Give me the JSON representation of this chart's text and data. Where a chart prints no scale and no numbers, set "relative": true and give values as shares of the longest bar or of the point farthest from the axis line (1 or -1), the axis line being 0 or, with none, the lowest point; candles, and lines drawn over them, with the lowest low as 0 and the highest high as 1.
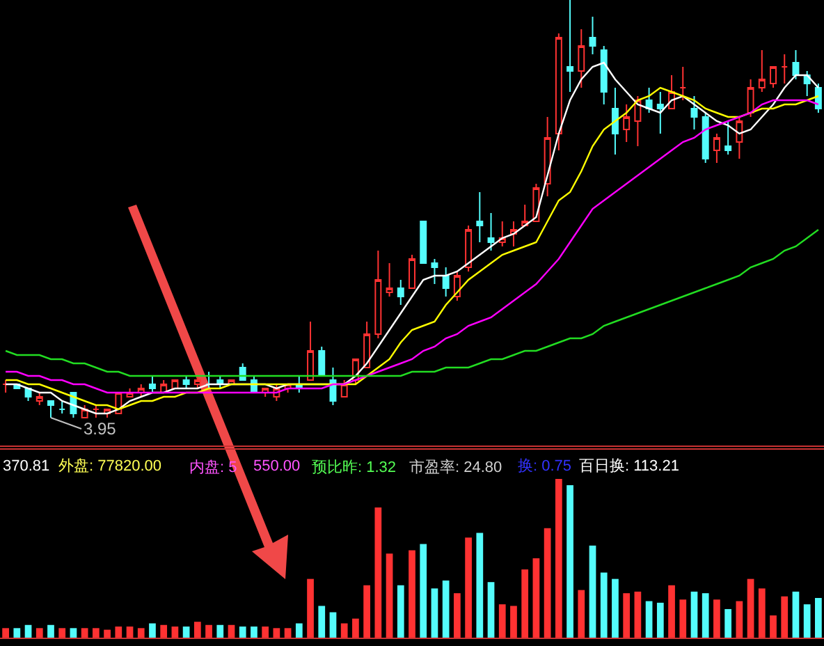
{
  "chart_data": [
    {
      "type": "candlestick",
      "relative": true,
      "categories": [
        null,
        null,
        null,
        null,
        null,
        null,
        null,
        null,
        null,
        null,
        null,
        null,
        null,
        null,
        null,
        null,
        null,
        null,
        null,
        null,
        null,
        null,
        null,
        null,
        null,
        null,
        null,
        null,
        null,
        null,
        null,
        null,
        null,
        null,
        null,
        null,
        null,
        null,
        null,
        null,
        null,
        null,
        null,
        null,
        null,
        null,
        null,
        null,
        null,
        null,
        null,
        null,
        null,
        null,
        null,
        null,
        null,
        null,
        null,
        null,
        null,
        null,
        null,
        null,
        null,
        null,
        null,
        null,
        null,
        null,
        null,
        null,
        null
      ],
      "ohlc": [
        [
          0.08,
          0.09,
          0.06,
          0.08
        ],
        [
          0.08,
          0.08,
          0.07,
          0.07
        ],
        [
          0.07,
          0.07,
          0.04,
          0.05
        ],
        [
          0.04,
          0.06,
          0.03,
          0.05
        ],
        [
          0.04,
          0.04,
          0,
          0.03
        ],
        [
          0.02,
          0.04,
          0.01,
          0.02
        ],
        [
          0.06,
          0.06,
          0,
          0.01
        ],
        [
          0,
          0.03,
          0,
          0.02
        ],
        [
          0.02,
          0.03,
          0,
          0.02
        ],
        [
          0.01,
          0.02,
          0,
          0.02
        ],
        [
          0.01,
          0.06,
          0.01,
          0.06
        ],
        [
          0.05,
          0.07,
          0.05,
          0.06
        ],
        [
          0.06,
          0.08,
          0.05,
          0.07
        ],
        [
          0.08,
          0.1,
          0.06,
          0.07
        ],
        [
          0.06,
          0.09,
          0.06,
          0.08
        ],
        [
          0.07,
          0.09,
          0.07,
          0.09
        ],
        [
          0.09,
          0.1,
          0.07,
          0.08
        ],
        [
          0.08,
          0.1,
          0.07,
          0.09
        ],
        [
          0.08,
          0.11,
          0.07,
          0.08
        ],
        [
          0.09,
          0.1,
          0.07,
          0.08
        ],
        [
          0.08,
          0.09,
          0.08,
          0.09
        ],
        [
          0.12,
          0.13,
          0.09,
          0.09
        ],
        [
          0.09,
          0.1,
          0.06,
          0.06
        ],
        [
          0.06,
          0.07,
          0.05,
          0.07
        ],
        [
          0.05,
          0.08,
          0.04,
          0.07
        ],
        [
          0.07,
          0.08,
          0.06,
          0.08
        ],
        [
          0.08,
          0.1,
          0.06,
          0.07
        ],
        [
          0.09,
          0.23,
          0.09,
          0.16
        ],
        [
          0.16,
          0.17,
          0.1,
          0.1
        ],
        [
          0.09,
          0.12,
          0.03,
          0.04
        ],
        [
          0.05,
          0.09,
          0.05,
          0.08
        ],
        [
          0.09,
          0.14,
          0.08,
          0.14
        ],
        [
          0.12,
          0.23,
          0.12,
          0.2
        ],
        [
          0.2,
          0.4,
          0.19,
          0.33
        ],
        [
          0.3,
          0.37,
          0.29,
          0.31
        ],
        [
          0.31,
          0.33,
          0.27,
          0.29
        ],
        [
          0.31,
          0.39,
          0.31,
          0.38
        ],
        [
          0.47,
          0.47,
          0.37,
          0.37
        ],
        [
          0.37,
          0.38,
          0.32,
          0.36
        ],
        [
          0.34,
          0.36,
          0.29,
          0.31
        ],
        [
          0.29,
          0.35,
          0.28,
          0.34
        ],
        [
          0.36,
          0.46,
          0.35,
          0.45
        ],
        [
          0.47,
          0.54,
          0.42,
          0.46
        ],
        [
          0.43,
          0.49,
          0.4,
          0.42
        ],
        [
          0.42,
          0.47,
          0.41,
          0.43
        ],
        [
          0.44,
          0.47,
          0.41,
          0.45
        ],
        [
          0.46,
          0.51,
          0.46,
          0.47
        ],
        [
          0.47,
          0.56,
          0.47,
          0.55
        ],
        [
          0.56,
          0.72,
          0.53,
          0.67
        ],
        [
          0.68,
          0.92,
          0.64,
          0.91
        ],
        [
          0.84,
          1,
          0.78,
          0.83
        ],
        [
          0.83,
          0.93,
          0.79,
          0.89
        ],
        [
          0.91,
          0.96,
          0.87,
          0.89
        ],
        [
          0.88,
          0.89,
          0.75,
          0.78
        ],
        [
          0.74,
          0.79,
          0.63,
          0.68
        ],
        [
          0.69,
          0.75,
          0.66,
          0.72
        ],
        [
          0.71,
          0.77,
          0.65,
          0.76
        ],
        [
          0.76,
          0.79,
          0.73,
          0.74
        ],
        [
          0.75,
          0.78,
          0.68,
          0.74
        ],
        [
          0.74,
          0.82,
          0.74,
          0.78
        ],
        [
          0.79,
          0.84,
          0.76,
          0.79
        ],
        [
          0.74,
          0.77,
          0.69,
          0.72
        ],
        [
          0.72,
          0.73,
          0.61,
          0.62
        ],
        [
          0.64,
          0.68,
          0.61,
          0.67
        ],
        [
          0.65,
          0.71,
          0.63,
          0.64
        ],
        [
          0.66,
          0.72,
          0.62,
          0.71
        ],
        [
          0.73,
          0.81,
          0.72,
          0.79
        ],
        [
          0.79,
          0.88,
          0.78,
          0.81
        ],
        [
          0.8,
          0.84,
          0.79,
          0.84
        ],
        [
          0.84,
          0.87,
          0.8,
          0.84
        ],
        [
          0.85,
          0.88,
          0.81,
          0.82
        ],
        [
          0.82,
          0.83,
          0.77,
          0.8
        ],
        [
          0.79,
          0.8,
          0.73,
          0.74
        ]
      ],
      "series": [
        {
          "type": "line",
          "color": "#ffffff",
          "values": [
            0.08,
            0.08,
            0.07,
            0.06,
            0.06,
            0.04,
            0.03,
            0.02,
            0.01,
            0.01,
            0.02,
            0.04,
            0.05,
            0.06,
            0.06,
            0.07,
            0.07,
            0.07,
            0.08,
            0.08,
            0.08,
            0.08,
            0.08,
            0.08,
            0.07,
            0.08,
            0.08,
            0.08,
            0.08,
            0.08,
            0.08,
            0.1,
            0.13,
            0.17,
            0.21,
            0.25,
            0.29,
            0.33,
            0.34,
            0.34,
            0.35,
            0.37,
            0.39,
            0.41,
            0.43,
            0.44,
            0.46,
            0.48,
            0.58,
            0.68,
            0.76,
            0.81,
            0.84,
            0.85,
            0.81,
            0.78,
            0.75,
            0.74,
            0.73,
            0.76,
            0.77,
            0.75,
            0.73,
            0.71,
            0.7,
            0.68,
            0.69,
            0.72,
            0.75,
            0.79,
            0.82,
            0.82,
            0.79
          ]
        },
        {
          "type": "line",
          "color": "#ffff00",
          "values": [
            0.09,
            0.09,
            0.08,
            0.08,
            0.07,
            0.06,
            0.05,
            0.04,
            0.03,
            0.03,
            0.02,
            0.03,
            0.04,
            0.04,
            0.05,
            0.05,
            0.06,
            0.06,
            0.07,
            0.07,
            0.08,
            0.08,
            0.08,
            0.08,
            0.08,
            0.08,
            0.08,
            0.08,
            0.08,
            0.08,
            0.08,
            0.08,
            0.1,
            0.12,
            0.14,
            0.18,
            0.21,
            0.22,
            0.23,
            0.27,
            0.3,
            0.33,
            0.35,
            0.37,
            0.39,
            0.4,
            0.41,
            0.42,
            0.47,
            0.52,
            0.54,
            0.59,
            0.65,
            0.69,
            0.71,
            0.73,
            0.76,
            0.77,
            0.79,
            0.78,
            0.77,
            0.76,
            0.74,
            0.73,
            0.72,
            0.72,
            0.73,
            0.74,
            0.74,
            0.75,
            0.75,
            0.76,
            0.77
          ]
        },
        {
          "type": "line",
          "color": "#ff00ff",
          "values": [
            0.11,
            0.11,
            0.1,
            0.1,
            0.09,
            0.09,
            0.08,
            0.08,
            0.07,
            0.06,
            0.06,
            0.06,
            0.06,
            0.06,
            0.06,
            0.06,
            0.06,
            0.06,
            0.06,
            0.06,
            0.06,
            0.06,
            0.06,
            0.06,
            0.06,
            0.07,
            0.07,
            0.07,
            0.07,
            0.08,
            0.08,
            0.09,
            0.1,
            0.11,
            0.12,
            0.13,
            0.14,
            0.16,
            0.17,
            0.19,
            0.2,
            0.22,
            0.23,
            0.24,
            0.26,
            0.28,
            0.3,
            0.32,
            0.35,
            0.38,
            0.42,
            0.46,
            0.5,
            0.52,
            0.54,
            0.56,
            0.58,
            0.6,
            0.62,
            0.64,
            0.66,
            0.67,
            0.69,
            0.7,
            0.71,
            0.72,
            0.73,
            0.75,
            0.76,
            0.76,
            0.76,
            0.76,
            0.75
          ]
        },
        {
          "type": "line",
          "color": "#22dd22",
          "values": [
            0.16,
            0.15,
            0.15,
            0.15,
            0.14,
            0.14,
            0.13,
            0.13,
            0.12,
            0.11,
            0.11,
            0.1,
            0.1,
            0.1,
            0.1,
            0.1,
            0.1,
            0.1,
            0.1,
            0.1,
            0.1,
            0.1,
            0.1,
            0.1,
            0.1,
            0.1,
            0.1,
            0.1,
            0.1,
            0.1,
            0.1,
            0.1,
            0.1,
            0.1,
            0.1,
            0.1,
            0.11,
            0.11,
            0.11,
            0.12,
            0.12,
            0.12,
            0.13,
            0.14,
            0.14,
            0.15,
            0.16,
            0.16,
            0.17,
            0.18,
            0.19,
            0.19,
            0.2,
            0.22,
            0.23,
            0.24,
            0.25,
            0.26,
            0.27,
            0.28,
            0.29,
            0.3,
            0.31,
            0.32,
            0.33,
            0.34,
            0.36,
            0.37,
            0.38,
            0.4,
            0.41,
            0.43,
            0.45
          ]
        }
      ],
      "annotations": [
        {
          "text": "3.95",
          "y": 0
        }
      ]
    },
    {
      "type": "bar",
      "relative": true,
      "categories": [
        null,
        null,
        null,
        null,
        null,
        null,
        null,
        null,
        null,
        null,
        null,
        null,
        null,
        null,
        null,
        null,
        null,
        null,
        null,
        null,
        null,
        null,
        null,
        null,
        null,
        null,
        null,
        null,
        null,
        null,
        null,
        null,
        null,
        null,
        null,
        null,
        null,
        null,
        null,
        null,
        null,
        null,
        null,
        null,
        null,
        null,
        null,
        null,
        null,
        null,
        null,
        null,
        null,
        null,
        null,
        null,
        null,
        null,
        null,
        null,
        null,
        null,
        null,
        null,
        null,
        null,
        null,
        null,
        null,
        null,
        null,
        null,
        null
      ],
      "values": [
        0.06,
        0.06,
        0.08,
        0.06,
        0.08,
        0.06,
        0.06,
        0.06,
        0.06,
        0.05,
        0.07,
        0.07,
        0.06,
        0.09,
        0.08,
        0.07,
        0.07,
        0.1,
        0.08,
        0.08,
        0.08,
        0.07,
        0.07,
        0.07,
        0.06,
        0.06,
        0.09,
        0.37,
        0.2,
        0.16,
        0.09,
        0.12,
        0.33,
        0.82,
        0.53,
        0.33,
        0.55,
        0.59,
        0.31,
        0.36,
        0.28,
        0.63,
        0.66,
        0.35,
        0.21,
        0.2,
        0.43,
        0.5,
        0.69,
        1,
        0.96,
        0.3,
        0.58,
        0.41,
        0.37,
        0.28,
        0.29,
        0.23,
        0.22,
        0.33,
        0.24,
        0.29,
        0.28,
        0.24,
        0.18,
        0.23,
        0.37,
        0.31,
        0.14,
        0.26,
        0.29,
        0.21,
        0.25
      ],
      "colors": [
        "#ff3232",
        "#54fcfc",
        "#54fcfc",
        "#ff3232",
        "#54fcfc",
        "#ff3232",
        "#54fcfc",
        "#ff3232",
        "#ff3232",
        "#ff3232",
        "#ff3232",
        "#ff3232",
        "#ff3232",
        "#54fcfc",
        "#ff3232",
        "#ff3232",
        "#54fcfc",
        "#ff3232",
        "#ff3232",
        "#54fcfc",
        "#ff3232",
        "#54fcfc",
        "#54fcfc",
        "#ff3232",
        "#ff3232",
        "#ff3232",
        "#54fcfc",
        "#ff3232",
        "#54fcfc",
        "#54fcfc",
        "#ff3232",
        "#ff3232",
        "#ff3232",
        "#ff3232",
        "#ff3232",
        "#54fcfc",
        "#ff3232",
        "#54fcfc",
        "#54fcfc",
        "#54fcfc",
        "#ff3232",
        "#ff3232",
        "#54fcfc",
        "#54fcfc",
        "#ff3232",
        "#ff3232",
        "#ff3232",
        "#ff3232",
        "#ff3232",
        "#ff3232",
        "#54fcfc",
        "#ff3232",
        "#54fcfc",
        "#54fcfc",
        "#54fcfc",
        "#ff3232",
        "#ff3232",
        "#54fcfc",
        "#54fcfc",
        "#ff3232",
        "#ff3232",
        "#54fcfc",
        "#54fcfc",
        "#ff3232",
        "#54fcfc",
        "#ff3232",
        "#ff3232",
        "#ff3232",
        "#ff3232",
        "#ff3232",
        "#54fcfc",
        "#54fcfc",
        "#54fcfc"
      ],
      "annotations": [
        "370.81",
        "外盘: 77820.00",
        "内盘: 5",
        "550.00",
        "预比昨: 1.32",
        "市盈率: 24.80",
        "换: 0.75",
        "百日换: 113.21"
      ]
    }
  ]
}
